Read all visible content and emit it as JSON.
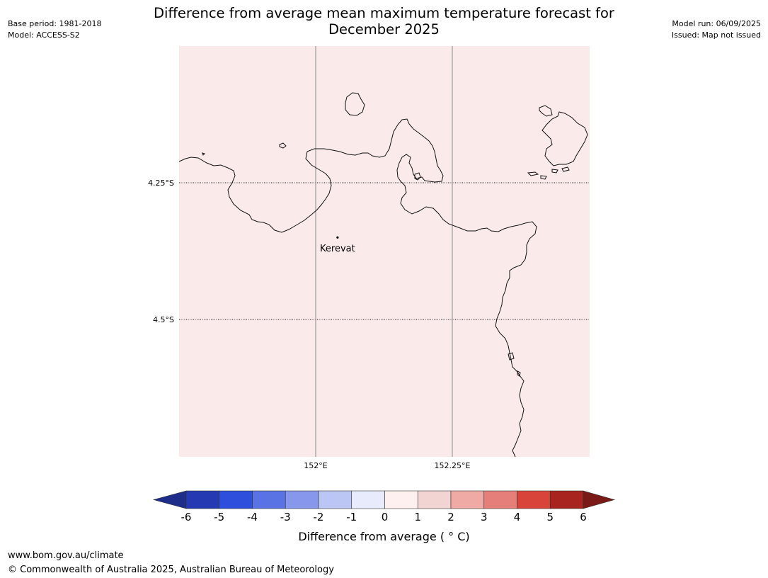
{
  "header": {
    "base_period": "Base period: 1981-2018",
    "model": "Model: ACCESS-S2",
    "model_run": "Model run: 06/09/2025",
    "issued": "Issued: Map not issued",
    "title_line1": "Difference from average mean maximum temperature forecast for",
    "title_line2": "December 2025"
  },
  "map": {
    "background_color": "#fbeaea",
    "coastline_color": "#111111",
    "lon_ticks": [
      {
        "value": 152.0,
        "label": "152°E"
      },
      {
        "value": 152.25,
        "label": "152.25°E"
      }
    ],
    "lat_ticks": [
      {
        "value": -4.25,
        "label": "4.25°S"
      },
      {
        "value": -4.5,
        "label": "4.5°S"
      }
    ],
    "places": [
      {
        "name": "Kerevat",
        "lon": 152.04,
        "lat": -4.35
      }
    ]
  },
  "legend": {
    "label": "Difference from average ( ° C)",
    "tick_labels": [
      "-6",
      "-5",
      "-4",
      "-3",
      "-2",
      "-1",
      "0",
      "1",
      "2",
      "3",
      "4",
      "5",
      "6"
    ],
    "colors": [
      "#1f2d8a",
      "#253ab2",
      "#2e4fdc",
      "#5a73e4",
      "#8797ec",
      "#bcc6f4",
      "#e8ebfb",
      "#fdf0ee",
      "#f2d4d2",
      "#efaaa6",
      "#e57f7a",
      "#d9443a",
      "#a8241f",
      "#7a1a16"
    ]
  },
  "footer": {
    "url": "www.bom.gov.au/climate",
    "copyright": "© Commonwealth of Australia 2025, Australian Bureau of Meteorology"
  }
}
